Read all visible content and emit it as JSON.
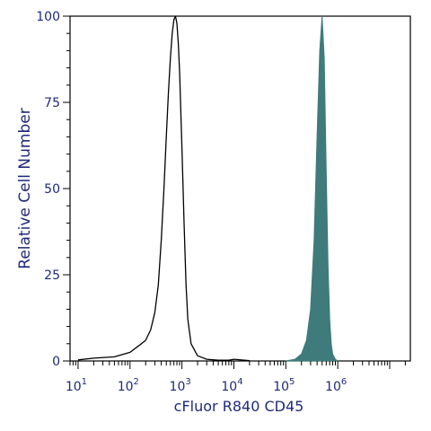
{
  "chart_data": {
    "type": "area",
    "title": "",
    "xlabel": "cFluor R840 CD45",
    "ylabel": "Relative Cell Number",
    "x_scale": "log",
    "xlim": [
      7,
      25000000
    ],
    "ylim": [
      0,
      100
    ],
    "x_ticks": [
      {
        "base": "10",
        "exp": "1",
        "value": 10
      },
      {
        "base": "10",
        "exp": "2",
        "value": 100
      },
      {
        "base": "10",
        "exp": "3",
        "value": 1000
      },
      {
        "base": "10",
        "exp": "4",
        "value": 10000
      },
      {
        "base": "10",
        "exp": "5",
        "value": 100000
      },
      {
        "base": "10",
        "exp": "6",
        "value": 1000000
      }
    ],
    "y_ticks": [
      "0",
      "25",
      "50",
      "75",
      "100"
    ],
    "grid": false,
    "legend": "none",
    "series": [
      {
        "style": "outline",
        "color": "#000000",
        "x": [
          10,
          20,
          50,
          100,
          150,
          200,
          250,
          300,
          350,
          400,
          450,
          500,
          550,
          600,
          650,
          700,
          750,
          800,
          850,
          900,
          1000,
          1100,
          1200,
          1300,
          1500,
          2000,
          3000,
          5000,
          8000,
          10000,
          20000
        ],
        "y": [
          0.3,
          0.8,
          1.2,
          2.5,
          4.5,
          6.0,
          9.0,
          14.0,
          22.0,
          35.0,
          50.0,
          65.0,
          78.0,
          88.0,
          95.0,
          99.0,
          100.0,
          98.0,
          92.0,
          84.0,
          62.0,
          40.0,
          22.0,
          12.0,
          5.0,
          1.5,
          0.5,
          0.2,
          0.2,
          0.5,
          0.1
        ]
      },
      {
        "style": "filled",
        "color": "#3f7b7a",
        "x": [
          100000,
          150000,
          200000,
          250000,
          300000,
          350000,
          400000,
          450000,
          500000,
          550000,
          600000,
          650000,
          700000,
          750000,
          800000,
          900000,
          1000000
        ],
        "y": [
          0.0,
          0.5,
          2.0,
          6.0,
          15.0,
          35.0,
          65.0,
          90.0,
          100.0,
          88.0,
          55.0,
          28.0,
          12.0,
          5.0,
          2.0,
          0.5,
          0.0
        ]
      }
    ]
  }
}
